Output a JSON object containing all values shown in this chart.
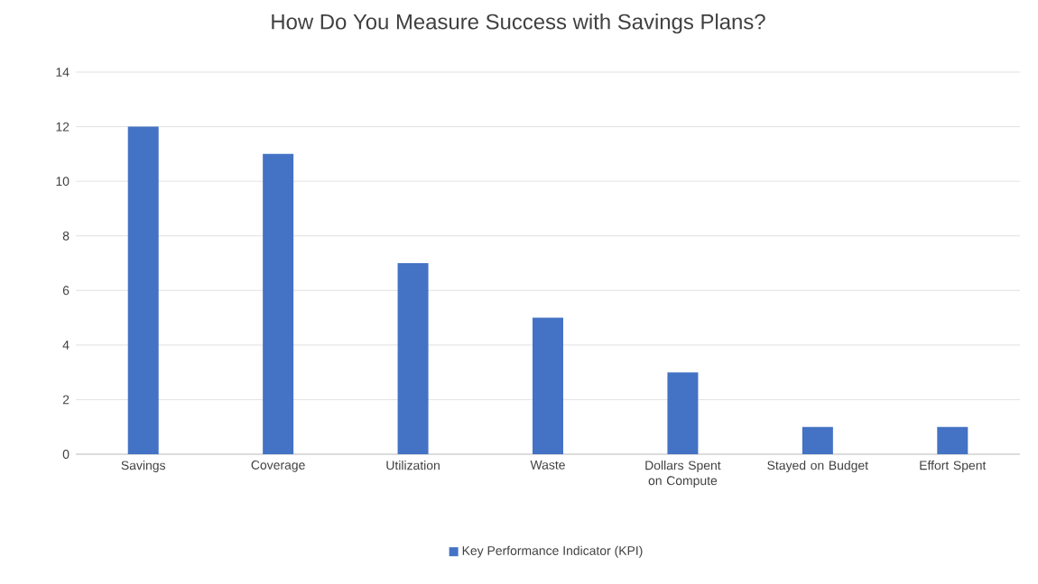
{
  "chart_data": {
    "type": "bar",
    "title": "How Do You Measure Success with Savings Plans?",
    "categories": [
      "Savings",
      "Coverage",
      "Utilization",
      "Waste",
      "Dollars Spent on Compute",
      "Stayed on Budget",
      "Effort Spent"
    ],
    "series": [
      {
        "name": "Key Performance Indicator (KPI)",
        "color": "#4472c4",
        "values": [
          12,
          11,
          7,
          5,
          3,
          1,
          1
        ]
      }
    ],
    "ylim": [
      0,
      14
    ],
    "yticks": [
      0,
      2,
      4,
      6,
      8,
      10,
      12,
      14
    ],
    "grid": "y",
    "legend": "bottom"
  }
}
